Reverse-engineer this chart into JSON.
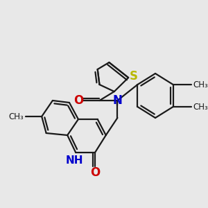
{
  "background_color": "#e8e8e8",
  "bond_color": "#1a1a1a",
  "bond_width": 1.6,
  "figsize": [
    3.0,
    3.0
  ],
  "dpi": 100,
  "xlim": [
    0,
    300
  ],
  "ylim": [
    0,
    300
  ]
}
